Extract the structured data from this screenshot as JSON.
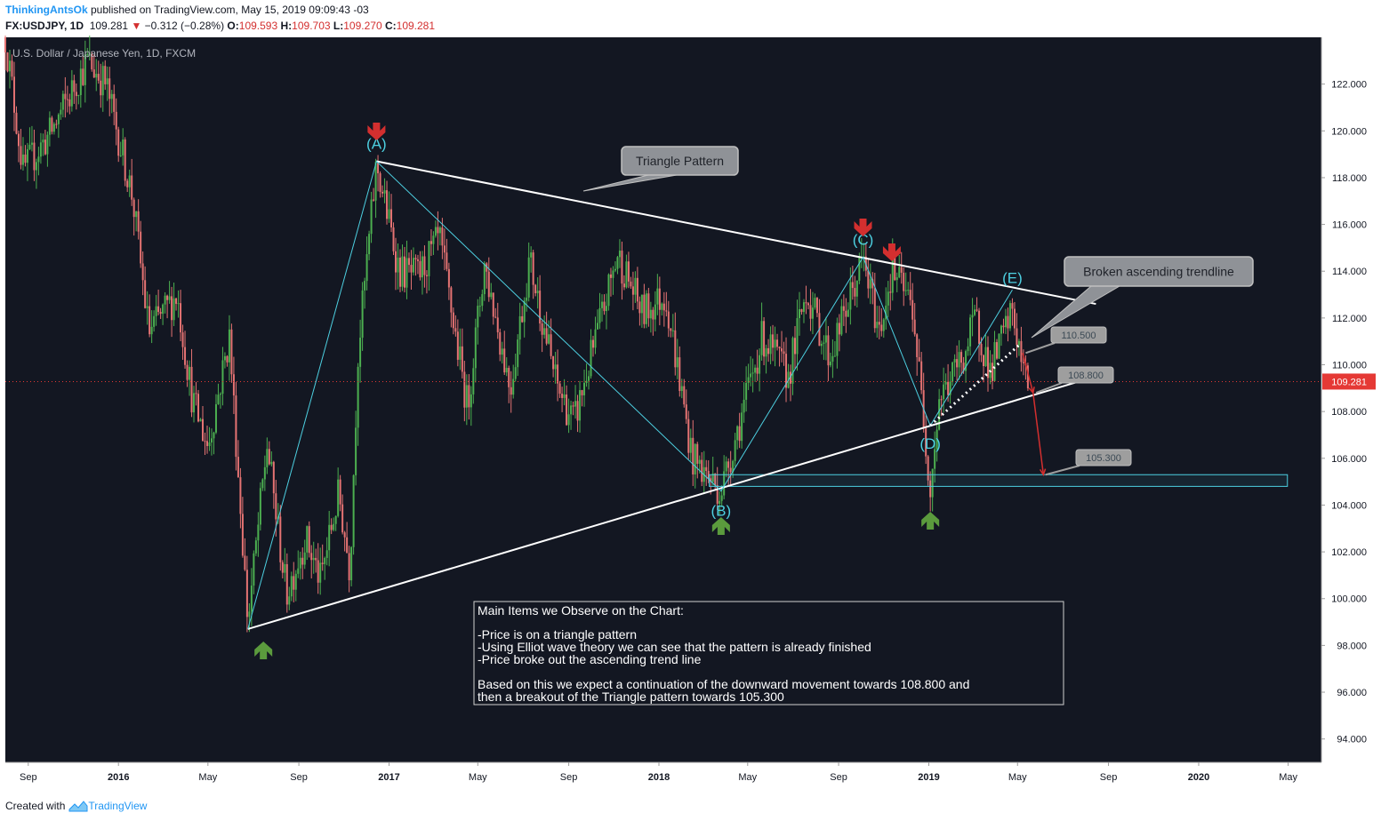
{
  "header": {
    "author": "ThinkingAntsOk",
    "published": " published on TradingView.com, May 15, 2019 09:09:43 -03",
    "symbol": "FX:USDJPY, 1D",
    "last": "109.281",
    "change_arrow": "▼",
    "change": "−0.312 (−0.28%)",
    "o_label": "O:",
    "o": "109.593",
    "h_label": "H:",
    "h": "109.703",
    "l_label": "L:",
    "l": "109.270",
    "c_label": "C:",
    "c": "109.281"
  },
  "footer": {
    "created_with": "Created with",
    "brand": "TradingView",
    "logo_icon": "tradingview-logo-icon"
  },
  "colors": {
    "background": "#131722",
    "axis_bg": "#ffffff",
    "up": "#4caf50",
    "down": "#e57373",
    "cyan": "#4dd0e1",
    "white_line": "#ffffff",
    "red_arrow": "#d32f2f",
    "green_arrow": "#5b9b3d",
    "price_line": "#e53935"
  },
  "chart_data": {
    "type": "candlestick",
    "title": "U.S. Dollar / Japanese Yen, 1D, FXCM",
    "ylim": [
      93,
      124
    ],
    "xlim": [
      "2015-08-01",
      "2020-06-15"
    ],
    "y_ticks": [
      "94.000",
      "96.000",
      "98.000",
      "100.000",
      "102.000",
      "104.000",
      "106.000",
      "108.000",
      "110.000",
      "112.000",
      "114.000",
      "116.000",
      "118.000",
      "120.000",
      "122.000"
    ],
    "x_ticks": [
      {
        "label": "Sep",
        "date": "2015-09-01",
        "bold": false
      },
      {
        "label": "2016",
        "date": "2016-01-01",
        "bold": true
      },
      {
        "label": "May",
        "date": "2016-05-01",
        "bold": false
      },
      {
        "label": "Sep",
        "date": "2016-09-01",
        "bold": false
      },
      {
        "label": "2017",
        "date": "2017-01-01",
        "bold": true
      },
      {
        "label": "May",
        "date": "2017-05-01",
        "bold": false
      },
      {
        "label": "Sep",
        "date": "2017-09-01",
        "bold": false
      },
      {
        "label": "2018",
        "date": "2018-01-01",
        "bold": true
      },
      {
        "label": "May",
        "date": "2018-05-01",
        "bold": false
      },
      {
        "label": "Sep",
        "date": "2018-09-01",
        "bold": false
      },
      {
        "label": "2019",
        "date": "2019-01-01",
        "bold": true
      },
      {
        "label": "May",
        "date": "2019-05-01",
        "bold": false
      },
      {
        "label": "Sep",
        "date": "2019-09-01",
        "bold": false
      },
      {
        "label": "2020",
        "date": "2020-01-01",
        "bold": true
      },
      {
        "label": "May",
        "date": "2020-05-01",
        "bold": false
      }
    ],
    "current_price": {
      "label": "109.281",
      "value": 109.281
    },
    "price_path": [
      [
        "2015-08-01",
        124.0
      ],
      [
        "2015-08-25",
        118.3
      ],
      [
        "2015-10-01",
        119.9
      ],
      [
        "2015-11-20",
        123.0
      ],
      [
        "2015-12-15",
        122.0
      ],
      [
        "2016-01-20",
        117.2
      ],
      [
        "2016-02-11",
        111.4
      ],
      [
        "2016-03-20",
        113.0
      ],
      [
        "2016-04-10",
        108.5
      ],
      [
        "2016-05-01",
        106.5
      ],
      [
        "2016-05-30",
        111.2
      ],
      [
        "2016-06-24",
        99.0
      ],
      [
        "2016-07-20",
        106.6
      ],
      [
        "2016-08-15",
        100.2
      ],
      [
        "2016-09-10",
        102.6
      ],
      [
        "2016-09-30",
        100.8
      ],
      [
        "2016-10-25",
        104.5
      ],
      [
        "2016-11-09",
        101.2
      ],
      [
        "2016-11-20",
        110.5
      ],
      [
        "2016-12-15",
        118.6
      ],
      [
        "2017-01-15",
        114.0
      ],
      [
        "2017-02-10",
        113.8
      ],
      [
        "2017-03-10",
        115.4
      ],
      [
        "2017-04-17",
        108.2
      ],
      [
        "2017-05-10",
        114.3
      ],
      [
        "2017-06-14",
        109.0
      ],
      [
        "2017-07-10",
        114.5
      ],
      [
        "2017-08-15",
        109.2
      ],
      [
        "2017-09-08",
        107.5
      ],
      [
        "2017-11-06",
        114.7
      ],
      [
        "2017-12-10",
        112.2
      ],
      [
        "2018-01-10",
        113.0
      ],
      [
        "2018-02-15",
        106.0
      ],
      [
        "2018-03-26",
        104.6
      ],
      [
        "2018-05-21",
        111.2
      ],
      [
        "2018-06-25",
        109.5
      ],
      [
        "2018-07-19",
        113.2
      ],
      [
        "2018-08-20",
        110.3
      ],
      [
        "2018-10-04",
        114.5
      ],
      [
        "2018-10-26",
        111.4
      ],
      [
        "2018-11-12",
        114.1
      ],
      [
        "2018-12-10",
        112.5
      ],
      [
        "2019-01-03",
        104.8
      ],
      [
        "2019-01-15",
        108.5
      ],
      [
        "2019-02-20",
        110.6
      ],
      [
        "2019-03-05",
        112.0
      ],
      [
        "2019-03-25",
        109.7
      ],
      [
        "2019-04-24",
        112.3
      ],
      [
        "2019-05-10",
        109.5
      ],
      [
        "2019-05-15",
        109.28
      ]
    ],
    "annotations": {
      "points": [
        {
          "label": "(A)",
          "date": "2016-12-15",
          "value": 118.7
        },
        {
          "label": "(B)",
          "date": "2018-03-26",
          "value": 104.6
        },
        {
          "label": "(C)",
          "date": "2018-10-04",
          "value": 114.6
        },
        {
          "label": "(D)",
          "date": "2019-01-03",
          "value": 107.4
        },
        {
          "label": "(E)",
          "date": "2019-04-24",
          "value": 113.2
        }
      ],
      "callouts": [
        {
          "text": "Triangle Pattern"
        },
        {
          "text": "Broken ascending trendline"
        }
      ],
      "price_targets": [
        "110.500",
        "108.800",
        "105.300"
      ],
      "upper_trendline": [
        [
          "2016-12-15",
          118.7
        ],
        [
          "2019-08-15",
          112.6
        ]
      ],
      "lower_trendline": [
        [
          "2016-06-24",
          98.7
        ],
        [
          "2019-08-15",
          109.5
        ]
      ],
      "support_zone": {
        "from": "2018-03-10",
        "to": "2020-04-30",
        "low": 104.8,
        "high": 105.3
      },
      "note": {
        "title": "Main Items we Observe on the Chart:",
        "lines": [
          "-Price is on a triangle pattern",
          "-Using Elliot wave theory we can see that the pattern is already finished",
          "-Price broke out the ascending trend line"
        ],
        "conclusion": [
          "Based on this we expect a continuation of the downward movement towards 108.800 and",
          "then a breakout of the Triangle pattern towards 105.300"
        ]
      }
    }
  }
}
